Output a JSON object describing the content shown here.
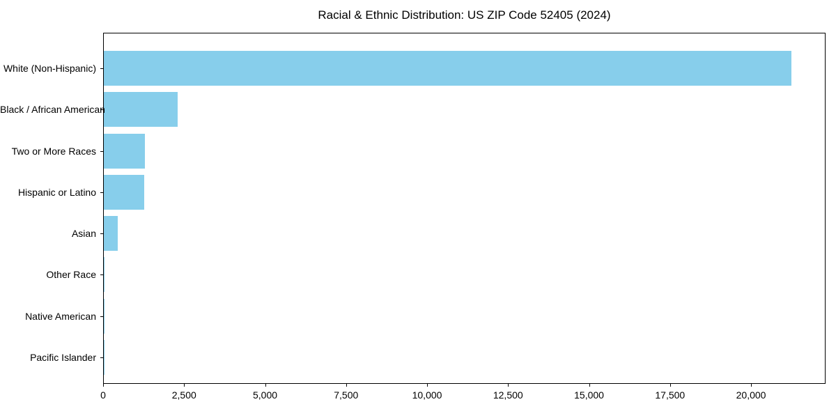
{
  "chart_data": {
    "type": "bar",
    "orientation": "horizontal",
    "title": "Racial & Ethnic Distribution: US ZIP Code 52405 (2024)",
    "categories": [
      "White (Non-Hispanic)",
      "Black / African American",
      "Two or More Races",
      "Hispanic or Latino",
      "Asian",
      "Other Race",
      "Native American",
      "Pacific Islander"
    ],
    "values": [
      21230,
      2290,
      1270,
      1240,
      440,
      30,
      10,
      5
    ],
    "xlabel": "",
    "ylabel": "",
    "xlim": [
      0,
      22300
    ],
    "x_ticks": [
      0,
      2500,
      5000,
      7500,
      10000,
      12500,
      15000,
      17500,
      20000
    ],
    "x_tick_labels": [
      "0",
      "2,500",
      "5,000",
      "7,500",
      "10,000",
      "12,500",
      "15,000",
      "17,500",
      "20,000"
    ],
    "bar_color": "#87CEEB",
    "grid": false,
    "legend_position": "none"
  }
}
